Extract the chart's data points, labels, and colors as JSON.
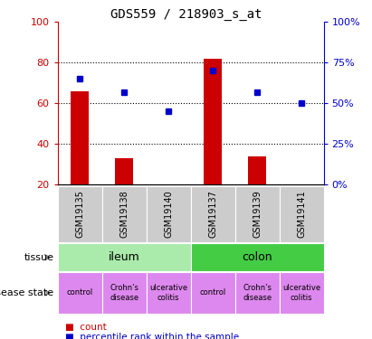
{
  "title": "GDS559 / 218903_s_at",
  "samples": [
    "GSM19135",
    "GSM19138",
    "GSM19140",
    "GSM19137",
    "GSM19139",
    "GSM19141"
  ],
  "count_values": [
    66,
    33,
    20,
    82,
    34,
    20
  ],
  "count_base": 20,
  "percentile_values": [
    65,
    57,
    45,
    70,
    57,
    50
  ],
  "percentile_scale": [
    0,
    25,
    50,
    75,
    100
  ],
  "count_scale": [
    20,
    40,
    60,
    80,
    100
  ],
  "bar_color": "#cc0000",
  "dot_color": "#0000cc",
  "tissue_ileum_color": "#aaeaaa",
  "tissue_colon_color": "#44cc44",
  "disease_color": "#dd88ee",
  "sample_bg_color": "#cccccc",
  "disease_row": [
    "control",
    "Crohn’s\ndisease",
    "ulcerative\ncolitis",
    "control",
    "Crohn’s\ndisease",
    "ulcerative\ncolitis"
  ],
  "tissue_label": "tissue",
  "disease_label": "disease state",
  "legend_count": "count",
  "legend_percentile": "percentile rank within the sample",
  "ymin": 20,
  "ymax": 100
}
